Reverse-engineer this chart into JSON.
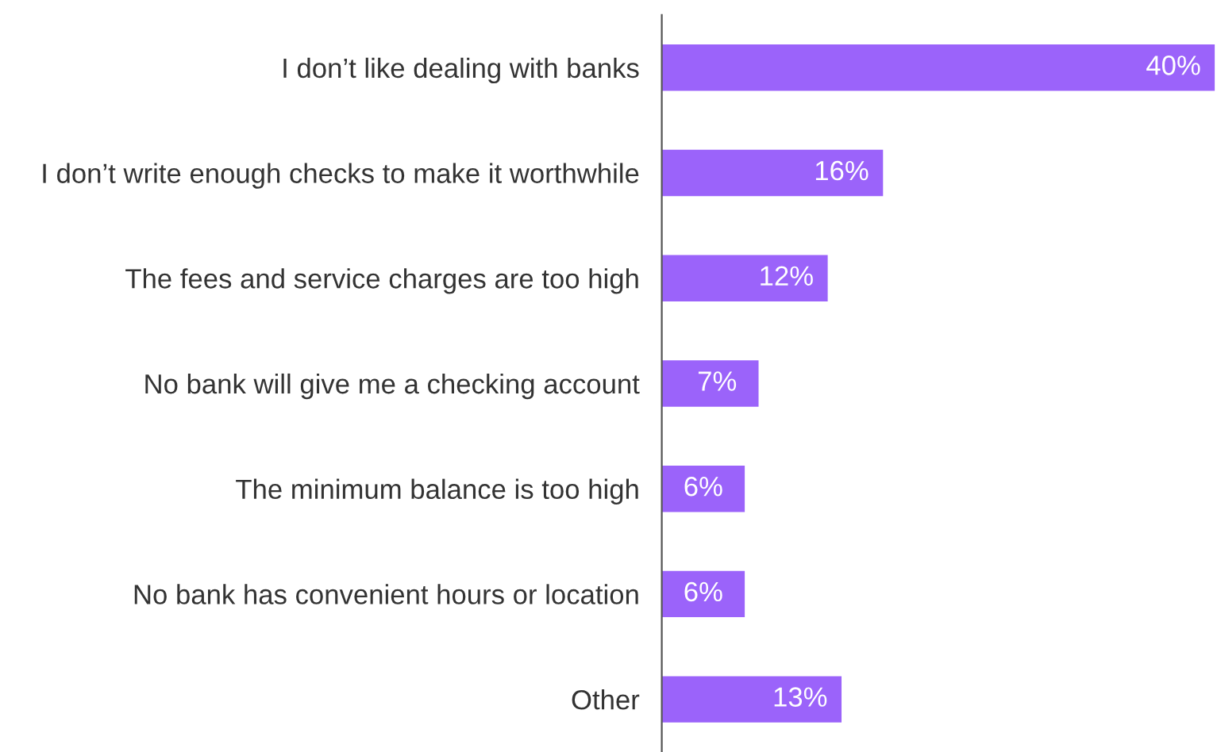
{
  "chart_data": {
    "type": "bar",
    "orientation": "horizontal",
    "categories": [
      "I don’t like dealing with banks",
      "I don’t write enough checks to make it worthwhile",
      "The fees and service charges are too high",
      "No bank will give me a checking account",
      "The minimum balance is too high",
      "No bank has convenient hours or location",
      "Other"
    ],
    "values": [
      40,
      16,
      12,
      7,
      6,
      6,
      13
    ],
    "value_labels": [
      "40%",
      "16%",
      "12%",
      "7%",
      "6%",
      "6%",
      "13%"
    ],
    "color": "#9b63fa",
    "grid": false,
    "legend": false
  }
}
